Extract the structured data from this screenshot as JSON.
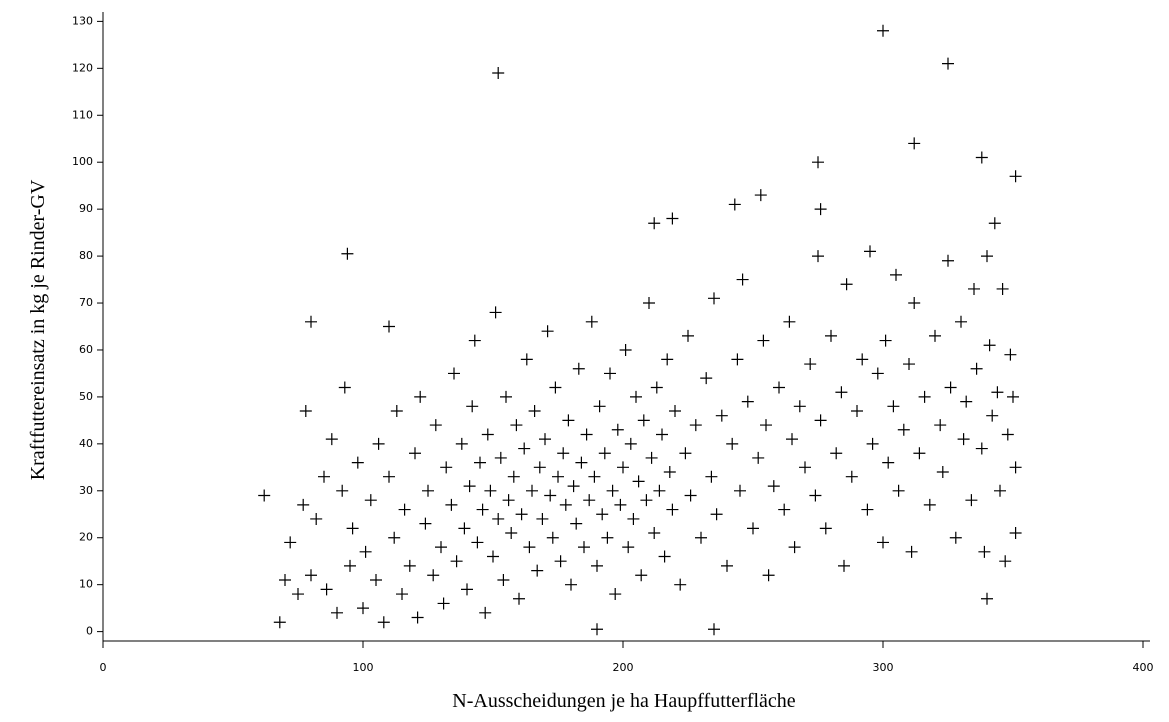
{
  "chart_data": {
    "type": "scatter",
    "x_label": "N-Ausscheidungen je ha Haupffutterfläche",
    "y_label": "Kraftfuttereinsatz in kg je Rinder-GV",
    "color": "#000000",
    "xlim": [
      0,
      400
    ],
    "xticks": [
      0,
      100,
      200,
      300,
      400
    ],
    "ylim": [
      -2,
      132
    ],
    "yticks": [
      0,
      10,
      20,
      30,
      40,
      50,
      60,
      70,
      80,
      90,
      100,
      110,
      120,
      130
    ],
    "x": [
      152,
      300,
      325,
      312,
      338,
      275,
      351,
      94,
      80,
      110,
      93,
      78,
      62,
      68,
      243,
      253,
      212,
      219,
      276,
      340,
      235,
      190,
      70,
      72,
      75,
      77,
      80,
      82,
      85,
      86,
      88,
      90,
      92,
      95,
      96,
      98,
      100,
      101,
      103,
      105,
      106,
      108,
      110,
      112,
      113,
      115,
      116,
      118,
      120,
      121,
      122,
      124,
      125,
      127,
      128,
      130,
      131,
      132,
      134,
      135,
      136,
      138,
      139,
      140,
      141,
      142,
      143,
      144,
      145,
      146,
      147,
      148,
      149,
      150,
      151,
      152,
      153,
      154,
      155,
      156,
      157,
      158,
      159,
      160,
      161,
      162,
      163,
      164,
      165,
      166,
      167,
      168,
      169,
      170,
      171,
      172,
      173,
      174,
      175,
      176,
      177,
      178,
      179,
      180,
      181,
      182,
      183,
      184,
      185,
      186,
      187,
      188,
      189,
      190,
      191,
      192,
      193,
      194,
      195,
      196,
      197,
      198,
      199,
      200,
      201,
      202,
      203,
      204,
      205,
      206,
      207,
      208,
      209,
      210,
      211,
      212,
      213,
      214,
      215,
      216,
      217,
      218,
      219,
      220,
      222,
      224,
      225,
      226,
      228,
      230,
      232,
      234,
      235,
      236,
      238,
      240,
      242,
      244,
      245,
      246,
      248,
      250,
      252,
      254,
      255,
      256,
      258,
      260,
      262,
      264,
      265,
      266,
      268,
      270,
      272,
      274,
      275,
      276,
      278,
      280,
      282,
      284,
      285,
      286,
      288,
      290,
      292,
      294,
      295,
      296,
      298,
      300,
      301,
      302,
      304,
      305,
      306,
      308,
      310,
      311,
      312,
      314,
      316,
      318,
      320,
      322,
      323,
      325,
      326,
      328,
      330,
      331,
      332,
      334,
      335,
      336,
      338,
      339,
      340,
      341,
      342,
      343,
      344,
      345,
      346,
      347,
      348,
      349,
      350,
      351,
      351
    ],
    "values": [
      119,
      128,
      121,
      104,
      101,
      100,
      97,
      80.5,
      66,
      65,
      52,
      47,
      29,
      2,
      91,
      93,
      87,
      88,
      90,
      7,
      0.5,
      0.5,
      11,
      19,
      8,
      27,
      12,
      24,
      33,
      9,
      41,
      4,
      30,
      14,
      22,
      36,
      5,
      17,
      28,
      11,
      40,
      2,
      33,
      20,
      47,
      8,
      26,
      14,
      38,
      3,
      50,
      23,
      30,
      12,
      44,
      18,
      6,
      35,
      27,
      55,
      15,
      40,
      22,
      9,
      31,
      48,
      62,
      19,
      36,
      26,
      4,
      42,
      30,
      16,
      68,
      24,
      37,
      11,
      50,
      28,
      21,
      33,
      44,
      7,
      25,
      39,
      58,
      18,
      30,
      47,
      13,
      35,
      24,
      41,
      64,
      29,
      20,
      52,
      33,
      15,
      38,
      27,
      45,
      10,
      31,
      23,
      56,
      36,
      18,
      42,
      28,
      66,
      33,
      14,
      48,
      25,
      38,
      20,
      55,
      30,
      8,
      43,
      27,
      35,
      60,
      18,
      40,
      24,
      50,
      32,
      12,
      45,
      28,
      70,
      37,
      21,
      52,
      30,
      42,
      16,
      58,
      34,
      26,
      47,
      10,
      38,
      63,
      29,
      44,
      20,
      54,
      33,
      71,
      25,
      46,
      14,
      40,
      58,
      30,
      75,
      49,
      22,
      37,
      62,
      44,
      12,
      31,
      52,
      26,
      66,
      41,
      18,
      48,
      35,
      57,
      29,
      80,
      45,
      22,
      63,
      38,
      51,
      14,
      74,
      33,
      47,
      58,
      26,
      81,
      40,
      55,
      19,
      62,
      36,
      48,
      76,
      30,
      43,
      57,
      17,
      70,
      38,
      50,
      27,
      63,
      44,
      34,
      79,
      52,
      20,
      66,
      41,
      49,
      28,
      73,
      56,
      39,
      17,
      80,
      61,
      46,
      87,
      51,
      30,
      73,
      15,
      42,
      59,
      50,
      35,
      21
    ]
  }
}
